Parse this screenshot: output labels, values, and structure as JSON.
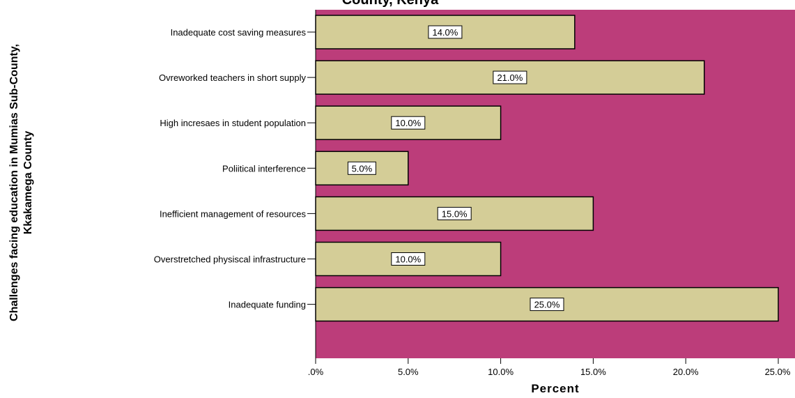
{
  "chart_data": {
    "type": "bar",
    "orientation": "horizontal",
    "title": "County, Kenya",
    "xlabel": "Percent",
    "ylabel_lines": [
      "Challenges facing education in Mumias Sub-County,",
      "Kkakamega County"
    ],
    "categories": [
      "Inadequate cost saving measures",
      "Ovreworked teachers in short supply",
      "High incresaes in student population",
      "Poliitical interference",
      "Inefficient management of resources",
      "Overstretched physiscal infrastructure",
      "Inadequate funding"
    ],
    "values": [
      14.0,
      21.0,
      10.0,
      5.0,
      15.0,
      10.0,
      25.0
    ],
    "data_labels": [
      "14.0%",
      "21.0%",
      "10.0%",
      "5.0%",
      "15.0%",
      "10.0%",
      "25.0%"
    ],
    "xticks": [
      0,
      5,
      10,
      15,
      20,
      25
    ],
    "xtick_labels": [
      ".0%",
      "5.0%",
      "10.0%",
      "15.0%",
      "20.0%",
      "25.0%"
    ],
    "xlim": [
      0,
      25
    ],
    "grid": false,
    "colors": {
      "plot_background": "#BC3D7A",
      "bar_fill": "#D4CD97",
      "bar_stroke": "#000000",
      "label_box": "#FFFFFF"
    }
  }
}
